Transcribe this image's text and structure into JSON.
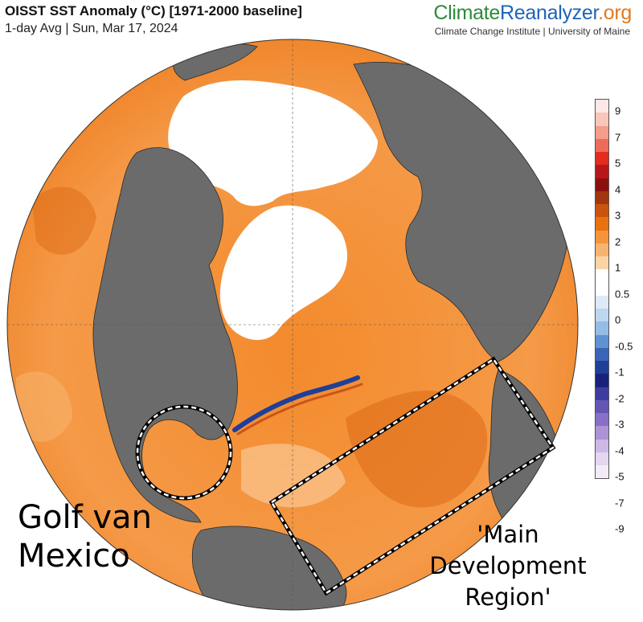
{
  "header": {
    "title": "OISST SST Anomaly (°C) [1971-2000 baseline]",
    "subtitle": "1-day Avg | Sun, Mar 17, 2024"
  },
  "brand": {
    "part1": "Climate",
    "part2": "Reanalyzer",
    "part3": ".org",
    "subtitle": "Climate Change Institute | University of Maine"
  },
  "colorbar": {
    "labels": [
      "9",
      "7",
      "5",
      "4",
      "3",
      "2",
      "1",
      "0.5",
      "0",
      "-0.5",
      "-1",
      "-2",
      "-3",
      "-4",
      "-5",
      "-7",
      "-9"
    ],
    "colors": [
      "#fde8e6",
      "#f9c6b9",
      "#f49d8a",
      "#ee6b5a",
      "#e32b1f",
      "#b8171a",
      "#8c1010",
      "#a2360e",
      "#c9540e",
      "#e8720f",
      "#f5943b",
      "#f8b36f",
      "#fbd4a6",
      "#ffffff",
      "#ffffff",
      "#dfeaf7",
      "#bdd7ef",
      "#93bde5",
      "#5f92d2",
      "#3a64b5",
      "#1f3f99",
      "#17237a",
      "#3e3d9f",
      "#6355b3",
      "#8770c5",
      "#ab93d6",
      "#cdb8e6",
      "#e4d5f0",
      "#f3ebf7"
    ]
  },
  "annotations": {
    "gulf": "Golf van\nMexico",
    "mdr": "'Main\nDevelopment\nRegion'"
  }
}
